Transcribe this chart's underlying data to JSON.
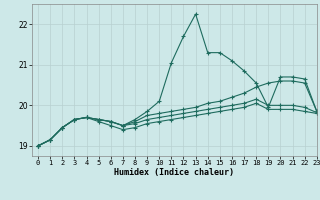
{
  "title": "",
  "xlabel": "Humidex (Indice chaleur)",
  "xlim": [
    -0.5,
    23
  ],
  "ylim": [
    18.75,
    22.5
  ],
  "yticks": [
    19,
    20,
    21,
    22
  ],
  "xticks": [
    0,
    1,
    2,
    3,
    4,
    5,
    6,
    7,
    8,
    9,
    10,
    11,
    12,
    13,
    14,
    15,
    16,
    17,
    18,
    19,
    20,
    21,
    22,
    23
  ],
  "bg_color": "#cde8e8",
  "line_color": "#1e6b5e",
  "grid_color_major": "#b8d0d0",
  "grid_color_minor": "#d0e4e4",
  "lines": [
    [
      19.0,
      19.15,
      19.45,
      19.65,
      19.7,
      19.65,
      19.6,
      19.5,
      19.65,
      19.85,
      20.1,
      21.05,
      21.7,
      22.25,
      21.3,
      21.3,
      21.1,
      20.85,
      20.55,
      19.95,
      20.7,
      20.7,
      20.65,
      19.85
    ],
    [
      19.0,
      19.15,
      19.45,
      19.65,
      19.7,
      19.65,
      19.6,
      19.5,
      19.6,
      19.75,
      19.8,
      19.85,
      19.9,
      19.95,
      20.05,
      20.1,
      20.2,
      20.3,
      20.45,
      20.55,
      20.6,
      20.6,
      20.55,
      19.85
    ],
    [
      19.0,
      19.15,
      19.45,
      19.65,
      19.7,
      19.6,
      19.5,
      19.4,
      19.45,
      19.55,
      19.6,
      19.65,
      19.7,
      19.75,
      19.8,
      19.85,
      19.9,
      19.95,
      20.05,
      19.9,
      19.9,
      19.9,
      19.85,
      19.8
    ],
    [
      19.0,
      19.15,
      19.45,
      19.65,
      19.7,
      19.65,
      19.6,
      19.5,
      19.55,
      19.65,
      19.7,
      19.75,
      19.8,
      19.85,
      19.9,
      19.95,
      20.0,
      20.05,
      20.15,
      20.0,
      20.0,
      20.0,
      19.95,
      19.82
    ]
  ]
}
